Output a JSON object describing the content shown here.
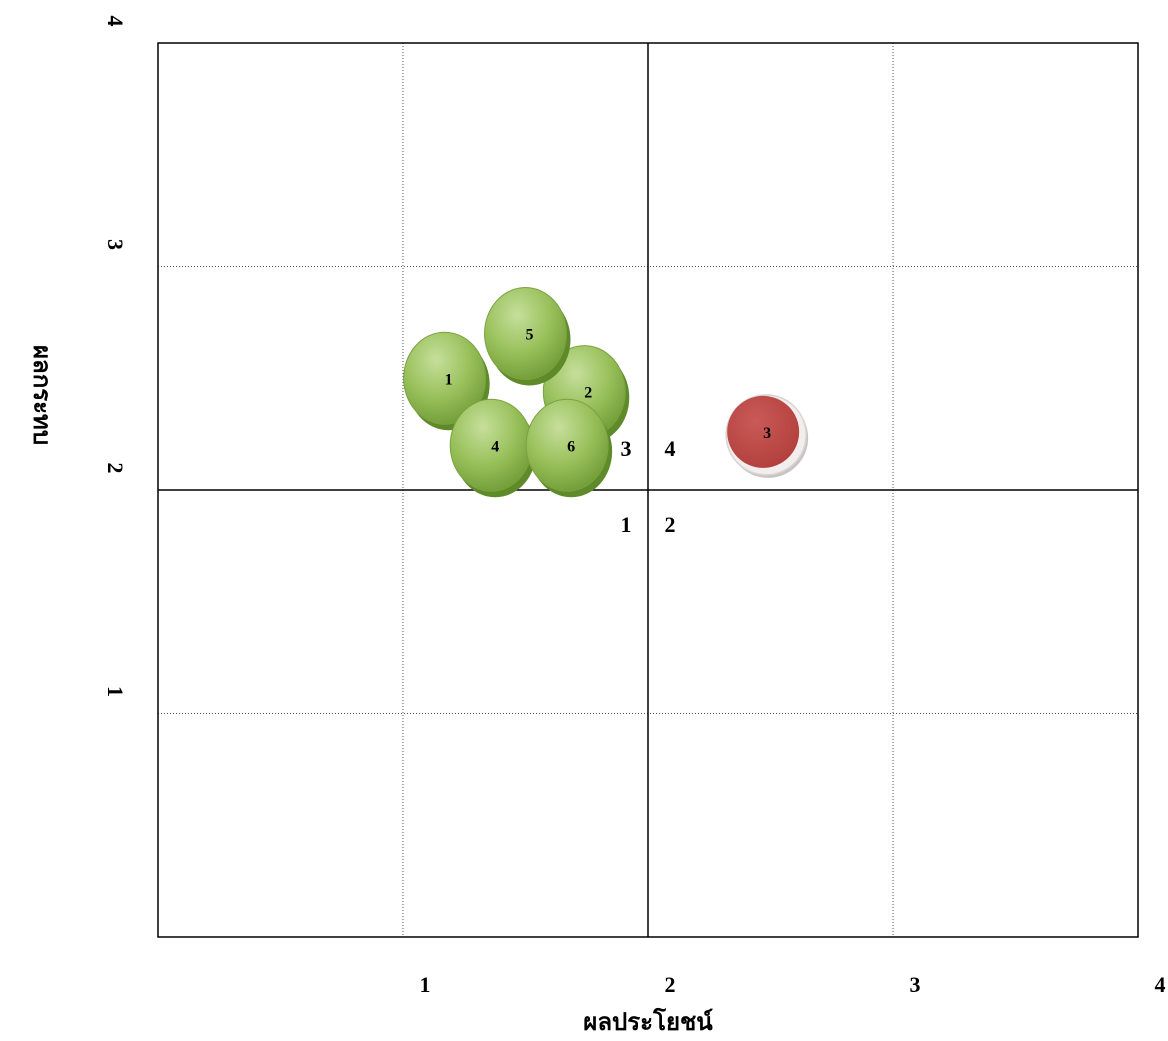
{
  "chart_data": {
    "type": "scatter",
    "xlabel": "ผลประโยชน์",
    "ylabel": "ผลกระทบ",
    "xlim": [
      0,
      4
    ],
    "ylim": [
      0,
      4
    ],
    "x_ticks": [
      "1",
      "2",
      "3",
      "4"
    ],
    "y_ticks": [
      "1",
      "2",
      "3",
      "4"
    ],
    "grid": true,
    "quadrant_labels": [
      "1",
      "2",
      "3",
      "4"
    ],
    "points": [
      {
        "label": "1",
        "x": 1.17,
        "y": 2.5,
        "color": "#8db54a"
      },
      {
        "label": "2",
        "x": 1.74,
        "y": 2.44,
        "color": "#8db54a"
      },
      {
        "label": "3",
        "x": 2.47,
        "y": 2.26,
        "color": "#c0504d"
      },
      {
        "label": "4",
        "x": 1.36,
        "y": 2.2,
        "color": "#8db54a"
      },
      {
        "label": "5",
        "x": 1.5,
        "y": 2.7,
        "color": "#8db54a"
      },
      {
        "label": "6",
        "x": 1.67,
        "y": 2.2,
        "color": "#8db54a"
      }
    ]
  }
}
